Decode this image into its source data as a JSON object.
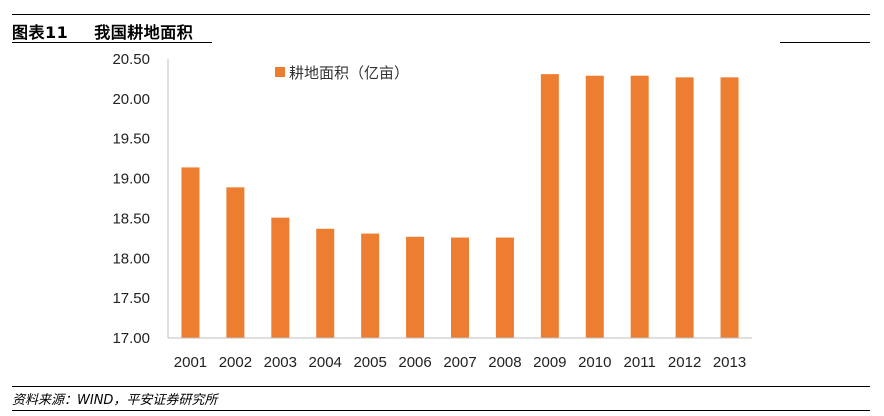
{
  "figure": {
    "label": "图表11",
    "title": "我国耕地面积",
    "source": "资料来源：WIND，平安证券研究所"
  },
  "colors": {
    "bar": "#ED7D31",
    "axis": "#BFBFBF",
    "text": "#222222"
  },
  "chart_data": {
    "type": "bar",
    "categories": [
      "2001",
      "2002",
      "2003",
      "2004",
      "2005",
      "2006",
      "2007",
      "2008",
      "2009",
      "2010",
      "2011",
      "2012",
      "2013"
    ],
    "series": [
      {
        "name": "耕地面积（亿亩）",
        "values": [
          19.14,
          18.89,
          18.51,
          18.37,
          18.31,
          18.27,
          18.26,
          18.26,
          20.31,
          20.29,
          20.29,
          20.27,
          20.27
        ]
      }
    ],
    "yticks": [
      "17.00",
      "17.50",
      "18.00",
      "18.50",
      "19.00",
      "19.50",
      "20.00",
      "20.50"
    ],
    "ylim": [
      17,
      20.5
    ],
    "grid": false,
    "legend": "top-left",
    "title": "",
    "xlabel": "",
    "ylabel": ""
  }
}
